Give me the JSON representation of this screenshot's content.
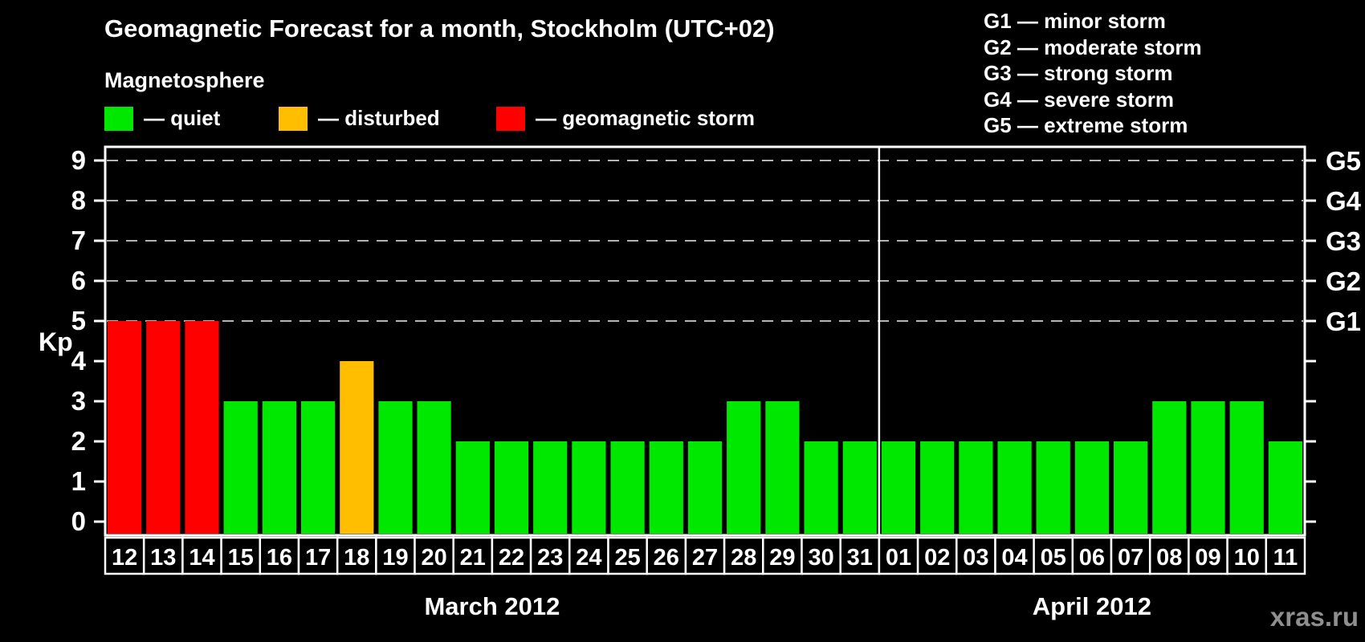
{
  "title": "Geomagnetic Forecast for a month, Stockholm (UTC+02)",
  "subtitle": "Magnetosphere",
  "legend": {
    "items": [
      {
        "status": "quiet",
        "label": "— quiet",
        "color": "#00e800"
      },
      {
        "status": "disturbed",
        "label": "— disturbed",
        "color": "#ffbf00"
      },
      {
        "status": "storm",
        "label": "— geomagnetic storm",
        "color": "#ff0000"
      }
    ]
  },
  "g_scale_legend": [
    "G1 — minor storm",
    "G2 — moderate storm",
    "G3 — strong storm",
    "G4 — severe storm",
    "G5 — extreme storm"
  ],
  "watermark": "xras.ru",
  "chart_data": {
    "type": "bar",
    "title": "Geomagnetic Forecast for a month, Stockholm (UTC+02)",
    "ylabel": "Kp",
    "ylim": [
      -0.35,
      9.35
    ],
    "yticks": [
      0,
      1,
      2,
      3,
      4,
      5,
      6,
      7,
      8,
      9
    ],
    "gridlines_at": [
      5,
      6,
      7,
      8,
      9
    ],
    "grid": "dashed",
    "right_axis": [
      {
        "value": 5,
        "label": "G1"
      },
      {
        "value": 6,
        "label": "G2"
      },
      {
        "value": 7,
        "label": "G3"
      },
      {
        "value": 8,
        "label": "G4"
      },
      {
        "value": 9,
        "label": "G5"
      }
    ],
    "status_colors": {
      "quiet": "#00e800",
      "disturbed": "#ffbf00",
      "storm": "#ff0000"
    },
    "months": [
      {
        "label": "March 2012",
        "bars": [
          {
            "day": "12",
            "kp": 5,
            "status": "storm"
          },
          {
            "day": "13",
            "kp": 5,
            "status": "storm"
          },
          {
            "day": "14",
            "kp": 5,
            "status": "storm"
          },
          {
            "day": "15",
            "kp": 3,
            "status": "quiet"
          },
          {
            "day": "16",
            "kp": 3,
            "status": "quiet"
          },
          {
            "day": "17",
            "kp": 3,
            "status": "quiet"
          },
          {
            "day": "18",
            "kp": 4,
            "status": "disturbed"
          },
          {
            "day": "19",
            "kp": 3,
            "status": "quiet"
          },
          {
            "day": "20",
            "kp": 3,
            "status": "quiet"
          },
          {
            "day": "21",
            "kp": 2,
            "status": "quiet"
          },
          {
            "day": "22",
            "kp": 2,
            "status": "quiet"
          },
          {
            "day": "23",
            "kp": 2,
            "status": "quiet"
          },
          {
            "day": "24",
            "kp": 2,
            "status": "quiet"
          },
          {
            "day": "25",
            "kp": 2,
            "status": "quiet"
          },
          {
            "day": "26",
            "kp": 2,
            "status": "quiet"
          },
          {
            "day": "27",
            "kp": 2,
            "status": "quiet"
          },
          {
            "day": "28",
            "kp": 3,
            "status": "quiet"
          },
          {
            "day": "29",
            "kp": 3,
            "status": "quiet"
          },
          {
            "day": "30",
            "kp": 2,
            "status": "quiet"
          },
          {
            "day": "31",
            "kp": 2,
            "status": "quiet"
          }
        ]
      },
      {
        "label": "April 2012",
        "bars": [
          {
            "day": "01",
            "kp": 2,
            "status": "quiet"
          },
          {
            "day": "02",
            "kp": 2,
            "status": "quiet"
          },
          {
            "day": "03",
            "kp": 2,
            "status": "quiet"
          },
          {
            "day": "04",
            "kp": 2,
            "status": "quiet"
          },
          {
            "day": "05",
            "kp": 2,
            "status": "quiet"
          },
          {
            "day": "06",
            "kp": 2,
            "status": "quiet"
          },
          {
            "day": "07",
            "kp": 2,
            "status": "quiet"
          },
          {
            "day": "08",
            "kp": 3,
            "status": "quiet"
          },
          {
            "day": "09",
            "kp": 3,
            "status": "quiet"
          },
          {
            "day": "10",
            "kp": 3,
            "status": "quiet"
          },
          {
            "day": "11",
            "kp": 2,
            "status": "quiet"
          }
        ]
      }
    ]
  }
}
